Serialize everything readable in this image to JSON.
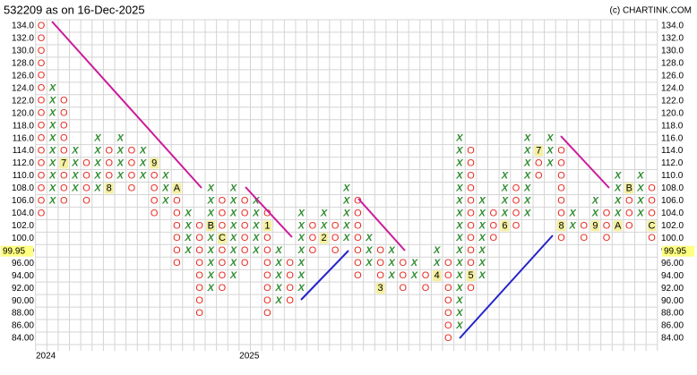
{
  "chart_data": {
    "type": "pnf",
    "title": "532209 as on 16-Dec-2025",
    "source": "(c) CHARTINK.COM",
    "ylim": [
      84,
      134
    ],
    "yticks": [
      {
        "value": 134,
        "label": "134.0"
      },
      {
        "value": 132,
        "label": "132.0"
      },
      {
        "value": 130,
        "label": "130.0"
      },
      {
        "value": 128,
        "label": "128.0"
      },
      {
        "value": 126,
        "label": "126.0"
      },
      {
        "value": 124,
        "label": "124.0"
      },
      {
        "value": 122,
        "label": "122.0"
      },
      {
        "value": 120,
        "label": "120.0"
      },
      {
        "value": 118,
        "label": "118.0"
      },
      {
        "value": 116,
        "label": "116.0"
      },
      {
        "value": 114,
        "label": "114.0"
      },
      {
        "value": 112,
        "label": "112.0"
      },
      {
        "value": 110,
        "label": "110.0"
      },
      {
        "value": 108,
        "label": "108.0"
      },
      {
        "value": 106,
        "label": "106.0"
      },
      {
        "value": 104,
        "label": "104.0"
      },
      {
        "value": 102,
        "label": "102.0"
      },
      {
        "value": 100,
        "label": "100.0"
      },
      {
        "value": 98,
        "label": "98.00"
      },
      {
        "value": 96,
        "label": "96.00"
      },
      {
        "value": 94,
        "label": "94.00"
      },
      {
        "value": 92,
        "label": "92.00"
      },
      {
        "value": 90,
        "label": "90.00"
      },
      {
        "value": 88,
        "label": "88.00"
      },
      {
        "value": 86,
        "label": "86.00"
      },
      {
        "value": 84,
        "label": "84.00"
      }
    ],
    "last_price": 99.95,
    "x_color": "#2e8b2e",
    "o_color": "#e8281e",
    "marker_bg": "#f5f0a0",
    "grid": true,
    "columns": [
      {
        "type": "O",
        "high": 134,
        "low": 104,
        "x_label": "2024"
      },
      {
        "type": "X",
        "high": 124,
        "low": 106
      },
      {
        "type": "O",
        "high": 122,
        "low": 106,
        "markers": [
          {
            "value": 112,
            "label": "7"
          }
        ]
      },
      {
        "type": "X",
        "high": 114,
        "low": 108
      },
      {
        "type": "O",
        "high": 112,
        "low": 106
      },
      {
        "type": "X",
        "high": 116,
        "low": 108
      },
      {
        "type": "O",
        "high": 114,
        "low": 108,
        "markers": [
          {
            "value": 108,
            "label": "8"
          }
        ]
      },
      {
        "type": "X",
        "high": 116,
        "low": 110
      },
      {
        "type": "O",
        "high": 114,
        "low": 108
      },
      {
        "type": "X",
        "high": 114,
        "low": 110
      },
      {
        "type": "O",
        "high": 112,
        "low": 104,
        "markers": [
          {
            "value": 112,
            "label": "9"
          }
        ]
      },
      {
        "type": "X",
        "high": 110,
        "low": 106
      },
      {
        "type": "O",
        "high": 108,
        "low": 96,
        "markers": [
          {
            "value": 108,
            "label": "A"
          }
        ]
      },
      {
        "type": "X",
        "high": 104,
        "low": 98
      },
      {
        "type": "O",
        "high": 102,
        "low": 88
      },
      {
        "type": "X",
        "high": 108,
        "low": 92,
        "markers": [
          {
            "value": 102,
            "label": "B"
          }
        ]
      },
      {
        "type": "O",
        "high": 106,
        "low": 92,
        "markers": [
          {
            "value": 100,
            "label": "C"
          }
        ]
      },
      {
        "type": "X",
        "high": 108,
        "low": 94
      },
      {
        "type": "O",
        "high": 106,
        "low": 96,
        "x_label": "2025"
      },
      {
        "type": "X",
        "high": 106,
        "low": 98
      },
      {
        "type": "O",
        "high": 104,
        "low": 88,
        "markers": [
          {
            "value": 102,
            "label": "1"
          }
        ]
      },
      {
        "type": "X",
        "high": 98,
        "low": 90
      },
      {
        "type": "O",
        "high": 96,
        "low": 90
      },
      {
        "type": "X",
        "high": 104,
        "low": 92
      },
      {
        "type": "O",
        "high": 102,
        "low": 98
      },
      {
        "type": "X",
        "high": 104,
        "low": 100,
        "markers": [
          {
            "value": 100,
            "label": "2"
          }
        ]
      },
      {
        "type": "O",
        "high": 102,
        "low": 98
      },
      {
        "type": "X",
        "high": 108,
        "low": 100
      },
      {
        "type": "O",
        "high": 106,
        "low": 94
      },
      {
        "type": "X",
        "high": 100,
        "low": 96
      },
      {
        "type": "O",
        "high": 98,
        "low": 92,
        "markers": [
          {
            "value": 92,
            "label": "3"
          }
        ]
      },
      {
        "type": "X",
        "high": 98,
        "low": 94
      },
      {
        "type": "O",
        "high": 96,
        "low": 92
      },
      {
        "type": "X",
        "high": 96,
        "low": 94
      },
      {
        "type": "O",
        "high": 94,
        "low": 92
      },
      {
        "type": "X",
        "high": 98,
        "low": 94,
        "markers": [
          {
            "value": 94,
            "label": "4"
          }
        ]
      },
      {
        "type": "O",
        "high": 96,
        "low": 84
      },
      {
        "type": "X",
        "high": 116,
        "low": 86
      },
      {
        "type": "O",
        "high": 114,
        "low": 92,
        "markers": [
          {
            "value": 94,
            "label": "5"
          }
        ]
      },
      {
        "type": "X",
        "high": 106,
        "low": 94
      },
      {
        "type": "O",
        "high": 104,
        "low": 100
      },
      {
        "type": "X",
        "high": 110,
        "low": 102,
        "markers": [
          {
            "value": 102,
            "label": "6"
          }
        ]
      },
      {
        "type": "O",
        "high": 108,
        "low": 102
      },
      {
        "type": "X",
        "high": 116,
        "low": 104
      },
      {
        "type": "O",
        "high": 114,
        "low": 110,
        "markers": [
          {
            "value": 114,
            "label": "7"
          }
        ]
      },
      {
        "type": "X",
        "high": 116,
        "low": 112
      },
      {
        "type": "O",
        "high": 114,
        "low": 100,
        "markers": [
          {
            "value": 102,
            "label": "8"
          }
        ]
      },
      {
        "type": "X",
        "high": 104,
        "low": 102
      },
      {
        "type": "O",
        "high": 102,
        "low": 100
      },
      {
        "type": "X",
        "high": 106,
        "low": 102,
        "markers": [
          {
            "value": 102,
            "label": "9"
          }
        ]
      },
      {
        "type": "O",
        "high": 104,
        "low": 100
      },
      {
        "type": "X",
        "high": 110,
        "low": 102,
        "markers": [
          {
            "value": 102,
            "label": "A"
          }
        ]
      },
      {
        "type": "O",
        "high": 108,
        "low": 102,
        "markers": [
          {
            "value": 108,
            "label": "B"
          }
        ]
      },
      {
        "type": "X",
        "high": 110,
        "low": 104
      },
      {
        "type": "O",
        "high": 108,
        "low": 100,
        "markers": [
          {
            "value": 102,
            "label": "C"
          }
        ]
      }
    ]
  }
}
